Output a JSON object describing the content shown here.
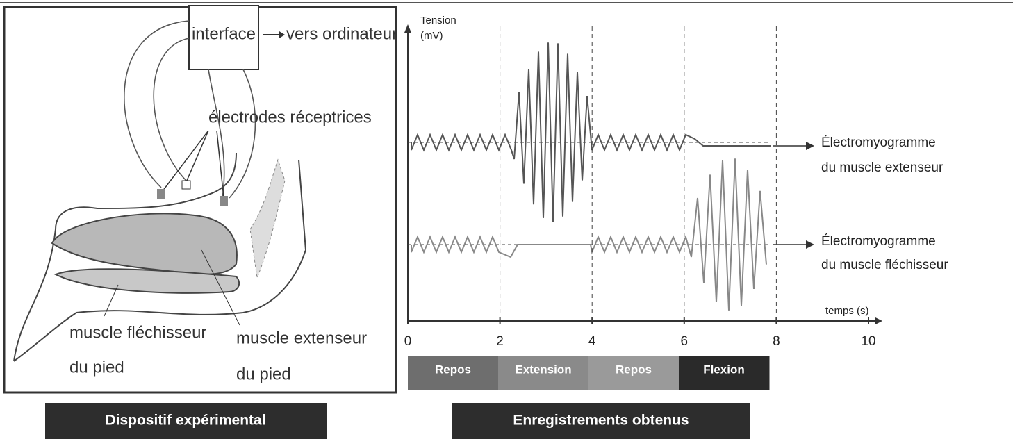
{
  "setup": {
    "interface": "interface",
    "output": "vers ordinateur",
    "electrodes": "électrodes réceptrices",
    "flexor_label": [
      "muscle fléchisseur",
      "du pied"
    ],
    "extensor_label": [
      "muscle extenseur",
      "du pied"
    ],
    "caption": "Dispositif expérimental"
  },
  "recordings": {
    "y_axis_label": [
      "Tension",
      "(mV)"
    ],
    "x_axis_label": "temps (s)",
    "xlim": [
      0,
      10
    ],
    "xticks": [
      0,
      2,
      4,
      6,
      8,
      10
    ],
    "phases": [
      "Repos",
      "Extension",
      "Repos",
      "Flexion"
    ],
    "extensor_trace": [
      "Électromyogramme",
      "du muscle extenseur"
    ],
    "flexor_trace": [
      "Électromyogramme",
      "du muscle fléchisseur"
    ],
    "caption": "Enregistrements obtenus"
  }
}
